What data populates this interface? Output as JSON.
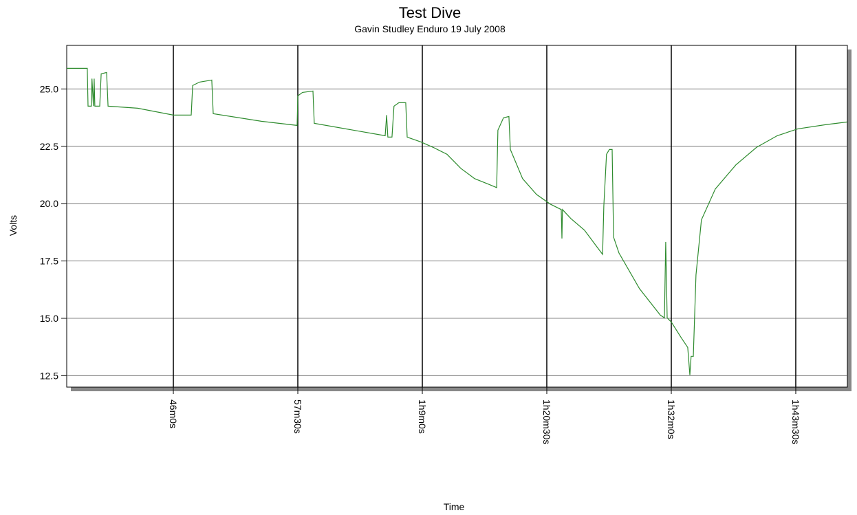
{
  "chart_data": {
    "type": "line",
    "title": "Test Dive",
    "subtitle": "Gavin Studley Enduro 19 July 2008",
    "x_label": "Time",
    "y_label": "Volts",
    "color": "#2e8b2e",
    "grid": true,
    "xlim": [
      2169,
      6496
    ],
    "ylim": [
      12.0,
      26.9
    ],
    "xticks": [
      {
        "value": 2760,
        "label": "46m0s"
      },
      {
        "value": 3450,
        "label": "57m30s"
      },
      {
        "value": 4140,
        "label": "1h9m0s"
      },
      {
        "value": 4830,
        "label": "1h20m30s"
      },
      {
        "value": 5520,
        "label": "1h32m0s"
      },
      {
        "value": 6210,
        "label": "1h43m30s"
      }
    ],
    "yticks": [
      12.5,
      {
        "value": 15,
        "label": "15.0"
      },
      17.5,
      {
        "value": 20,
        "label": "20.0"
      },
      22.5,
      {
        "value": 25,
        "label": "25.0"
      }
    ],
    "x": [
      2169,
      2283,
      2287,
      2306,
      2309,
      2317,
      2321,
      2325,
      2352,
      2360,
      2390,
      2398,
      2562,
      2760,
      2859,
      2867,
      2905,
      2973,
      2981,
      3248,
      3446,
      3450,
      3476,
      3534,
      3541,
      3934,
      3942,
      3949,
      3972,
      3983,
      4010,
      4048,
      4056,
      4132,
      4201,
      4277,
      4353,
      4430,
      4506,
      4552,
      4559,
      4590,
      4620,
      4628,
      4696,
      4773,
      4849,
      4910,
      4914,
      4917,
      4963,
      5039,
      5116,
      5139,
      5146,
      5161,
      5177,
      5192,
      5200,
      5230,
      5344,
      5459,
      5482,
      5489,
      5497,
      5520,
      5573,
      5611,
      5623,
      5630,
      5642,
      5657,
      5687,
      5764,
      5878,
      5992,
      6107,
      6221,
      6374,
      6496
    ],
    "values": [
      25.9,
      25.9,
      24.25,
      24.25,
      25.45,
      24.25,
      25.45,
      24.25,
      24.25,
      25.66,
      25.72,
      24.25,
      24.16,
      23.86,
      23.86,
      25.15,
      25.3,
      25.39,
      23.92,
      23.59,
      23.41,
      24.7,
      24.85,
      24.91,
      23.5,
      22.96,
      23.86,
      22.9,
      22.9,
      24.25,
      24.4,
      24.4,
      22.9,
      22.69,
      22.45,
      22.15,
      21.54,
      21.09,
      20.85,
      20.7,
      23.2,
      23.74,
      23.8,
      22.36,
      21.09,
      20.4,
      19.98,
      19.74,
      18.48,
      19.74,
      19.35,
      18.84,
      18.03,
      17.79,
      19.89,
      22.15,
      22.36,
      22.36,
      18.54,
      17.85,
      16.29,
      15.14,
      15.02,
      18.33,
      15.02,
      14.84,
      14.18,
      13.73,
      12.53,
      13.34,
      13.34,
      16.89,
      19.29,
      20.64,
      21.69,
      22.45,
      22.96,
      23.26,
      23.44,
      23.56
    ]
  }
}
